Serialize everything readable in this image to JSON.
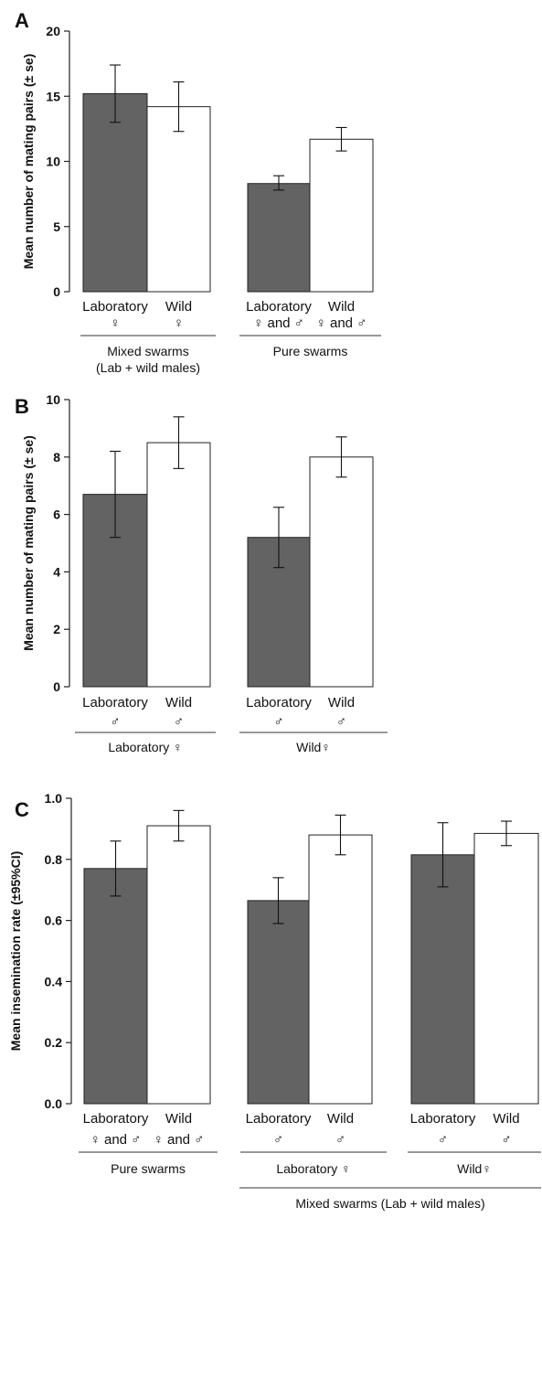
{
  "chart_data": [
    {
      "panel": "A",
      "type": "bar",
      "ylabel": "Mean number of mating pairs (± se)",
      "ylim": [
        0,
        20
      ],
      "yticks": [
        "0",
        "5",
        "10",
        "15",
        "20"
      ],
      "bars": [
        {
          "label": "Laboratory",
          "sublabel": "♀",
          "value": 15.2,
          "err_low": 13.0,
          "err_high": 17.4,
          "fill": "dark"
        },
        {
          "label": "Wild",
          "sublabel": "♀",
          "value": 14.2,
          "err_low": 12.3,
          "err_high": 16.1,
          "fill": "light"
        },
        {
          "label": "Laboratory",
          "sublabel": "♀ and ♂",
          "value": 8.3,
          "err_low": 7.8,
          "err_high": 8.9,
          "fill": "dark"
        },
        {
          "label": "Wild",
          "sublabel": "♀ and ♂",
          "value": 11.7,
          "err_low": 10.8,
          "err_high": 12.6,
          "fill": "light"
        }
      ],
      "groups": [
        {
          "label": "Mixed swarms\n(Lab + wild males)",
          "bars": [
            0,
            1
          ]
        },
        {
          "label": "Pure swarms",
          "bars": [
            2,
            3
          ]
        }
      ]
    },
    {
      "panel": "B",
      "type": "bar",
      "ylabel": "Mean number of mating pairs (± se)",
      "ylim": [
        0,
        10
      ],
      "yticks": [
        "0",
        "2",
        "4",
        "6",
        "8",
        "10"
      ],
      "bars": [
        {
          "label": "Laboratory",
          "sublabel": "♂",
          "value": 6.7,
          "err_low": 5.2,
          "err_high": 8.2,
          "fill": "dark"
        },
        {
          "label": "Wild",
          "sublabel": "♂",
          "value": 8.5,
          "err_low": 7.6,
          "err_high": 9.4,
          "fill": "light"
        },
        {
          "label": "Laboratory",
          "sublabel": "♂",
          "value": 5.2,
          "err_low": 4.15,
          "err_high": 6.25,
          "fill": "dark"
        },
        {
          "label": "Wild",
          "sublabel": "♂",
          "value": 8.0,
          "err_low": 7.3,
          "err_high": 8.7,
          "fill": "light"
        }
      ],
      "groups": [
        {
          "label": "Laboratory ♀",
          "bars": [
            0,
            1
          ]
        },
        {
          "label": "Wild♀",
          "bars": [
            2,
            3
          ]
        }
      ]
    },
    {
      "panel": "C",
      "type": "bar",
      "ylabel": "Mean insemination rate (±95%CI)",
      "ylim": [
        0,
        1
      ],
      "yticks": [
        "0.0",
        "0.2",
        "0.4",
        "0.6",
        "0.8",
        "1.0"
      ],
      "bars": [
        {
          "label": "Laboratory",
          "sublabel": "♀ and ♂",
          "value": 0.77,
          "err_low": 0.68,
          "err_high": 0.86,
          "fill": "dark"
        },
        {
          "label": "Wild",
          "sublabel": "♀ and ♂",
          "value": 0.91,
          "err_low": 0.86,
          "err_high": 0.96,
          "fill": "light"
        },
        {
          "label": "Laboratory",
          "sublabel": "♂",
          "value": 0.665,
          "err_low": 0.59,
          "err_high": 0.74,
          "fill": "dark"
        },
        {
          "label": "Wild",
          "sublabel": "♂",
          "value": 0.88,
          "err_low": 0.815,
          "err_high": 0.945,
          "fill": "light"
        },
        {
          "label": "Laboratory",
          "sublabel": "♂",
          "value": 0.815,
          "err_low": 0.71,
          "err_high": 0.92,
          "fill": "dark"
        },
        {
          "label": "Wild",
          "sublabel": "♂",
          "value": 0.885,
          "err_low": 0.845,
          "err_high": 0.925,
          "fill": "light"
        }
      ],
      "groups": [
        {
          "label": "Pure swarms",
          "bars": [
            0,
            1
          ]
        },
        {
          "label": "Laboratory ♀",
          "bars": [
            2,
            3
          ]
        },
        {
          "label": "Wild♀",
          "bars": [
            4,
            5
          ]
        }
      ],
      "supergroups": [
        {
          "label": "Mixed swarms (Lab + wild males)",
          "groups": [
            1,
            2
          ]
        }
      ]
    }
  ]
}
